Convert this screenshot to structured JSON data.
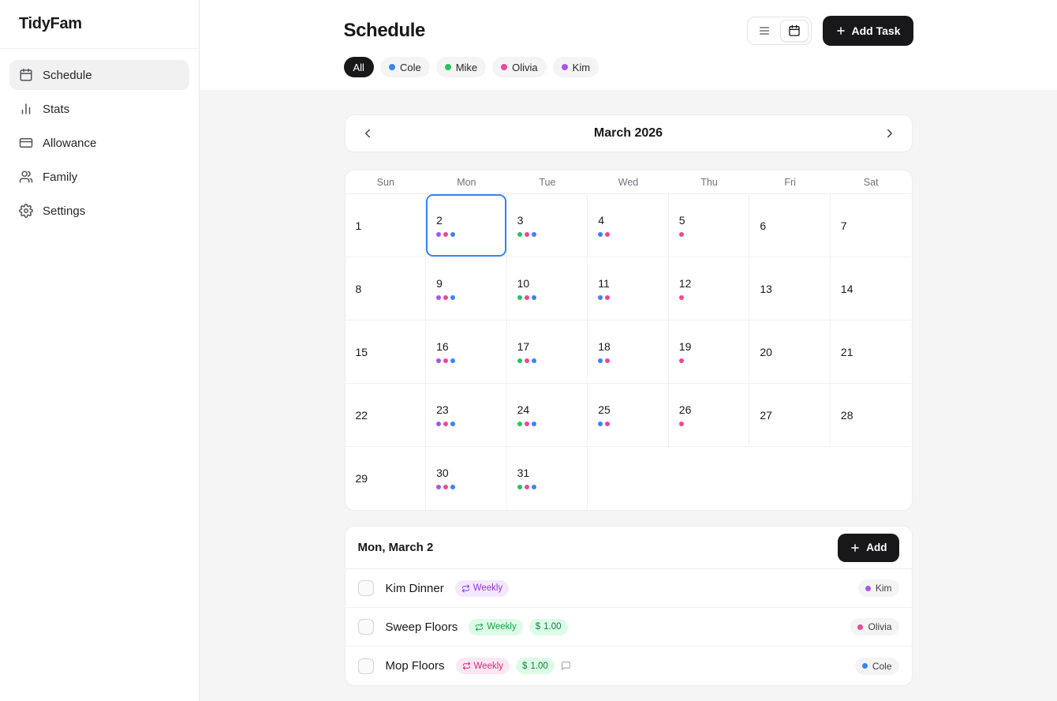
{
  "colors": {
    "accent": "#3b82f6",
    "blue": "#3b82f6",
    "green": "#22c55e",
    "pink": "#ec4899",
    "purple": "#a855f7"
  },
  "app": {
    "name": "TidyFam"
  },
  "sidebar": {
    "items": [
      {
        "label": "Schedule",
        "icon": "calendar",
        "active": true
      },
      {
        "label": "Stats",
        "icon": "bar-chart",
        "active": false
      },
      {
        "label": "Allowance",
        "icon": "wallet",
        "active": false
      },
      {
        "label": "Family",
        "icon": "users",
        "active": false
      },
      {
        "label": "Settings",
        "icon": "gear",
        "active": false
      }
    ]
  },
  "header": {
    "title": "Schedule",
    "filters": [
      {
        "label": "All",
        "active": true
      },
      {
        "label": "Cole",
        "color": "blue",
        "active": false
      },
      {
        "label": "Mike",
        "color": "green",
        "active": false
      },
      {
        "label": "Olivia",
        "color": "pink",
        "active": false
      },
      {
        "label": "Kim",
        "color": "purple",
        "active": false
      }
    ],
    "view_options": [
      {
        "icon": "list",
        "selected": false
      },
      {
        "icon": "calendar",
        "selected": true
      }
    ],
    "add_task_label": "Add Task"
  },
  "calendar": {
    "month_label": "March 2026",
    "day_headers": [
      "Sun",
      "Mon",
      "Tue",
      "Wed",
      "Thu",
      "Fri",
      "Sat"
    ],
    "weeks": [
      [
        {
          "day": 1
        },
        {
          "day": 2,
          "selected": true,
          "dots": [
            "purple",
            "pink",
            "blue"
          ]
        },
        {
          "day": 3,
          "dots": [
            "green",
            "pink",
            "blue"
          ]
        },
        {
          "day": 4,
          "dots": [
            "blue",
            "pink"
          ]
        },
        {
          "day": 5,
          "dots": [
            "pink"
          ]
        },
        {
          "day": 6
        },
        {
          "day": 7
        }
      ],
      [
        {
          "day": 8
        },
        {
          "day": 9,
          "dots": [
            "purple",
            "pink",
            "blue"
          ]
        },
        {
          "day": 10,
          "dots": [
            "green",
            "pink",
            "blue"
          ]
        },
        {
          "day": 11,
          "dots": [
            "blue",
            "pink"
          ]
        },
        {
          "day": 12,
          "dots": [
            "pink"
          ]
        },
        {
          "day": 13
        },
        {
          "day": 14
        }
      ],
      [
        {
          "day": 15
        },
        {
          "day": 16,
          "dots": [
            "purple",
            "pink",
            "blue"
          ]
        },
        {
          "day": 17,
          "dots": [
            "green",
            "pink",
            "blue"
          ]
        },
        {
          "day": 18,
          "dots": [
            "blue",
            "pink"
          ]
        },
        {
          "day": 19,
          "dots": [
            "pink"
          ]
        },
        {
          "day": 20
        },
        {
          "day": 21
        }
      ],
      [
        {
          "day": 22
        },
        {
          "day": 23,
          "dots": [
            "purple",
            "pink",
            "blue"
          ]
        },
        {
          "day": 24,
          "dots": [
            "green",
            "pink",
            "blue"
          ]
        },
        {
          "day": 25,
          "dots": [
            "blue",
            "pink"
          ]
        },
        {
          "day": 26,
          "dots": [
            "pink"
          ]
        },
        {
          "day": 27
        },
        {
          "day": 28
        }
      ],
      [
        {
          "day": 29
        },
        {
          "day": 30,
          "dots": [
            "purple",
            "pink",
            "blue"
          ]
        },
        {
          "day": 31,
          "dots": [
            "green",
            "pink",
            "blue"
          ]
        },
        {},
        {},
        {},
        {}
      ]
    ]
  },
  "day_detail": {
    "title": "Mon, March 2",
    "add_label": "Add",
    "tasks": [
      {
        "name": "Kim Dinner",
        "badges": [
          {
            "kind": "repeat",
            "label": "Weekly",
            "bg": "#f3e8ff",
            "fg": "#9333ea"
          }
        ],
        "assignee": {
          "name": "Kim",
          "color": "purple"
        }
      },
      {
        "name": "Sweep Floors",
        "badges": [
          {
            "kind": "repeat",
            "label": "Weekly",
            "bg": "#dcfce7",
            "fg": "#16a34a"
          },
          {
            "kind": "money",
            "currency": "$",
            "label": "1.00",
            "bg": "#dcfce7",
            "fg": "#15803d"
          }
        ],
        "assignee": {
          "name": "Olivia",
          "color": "pink"
        }
      },
      {
        "name": "Mop Floors",
        "badges": [
          {
            "kind": "repeat",
            "label": "Weekly",
            "bg": "#fce7f3",
            "fg": "#db2777"
          },
          {
            "kind": "money",
            "currency": "$",
            "label": "1.00",
            "bg": "#dcfce7",
            "fg": "#15803d"
          },
          {
            "kind": "comment"
          }
        ],
        "assignee": {
          "name": "Cole",
          "color": "blue"
        }
      }
    ]
  }
}
